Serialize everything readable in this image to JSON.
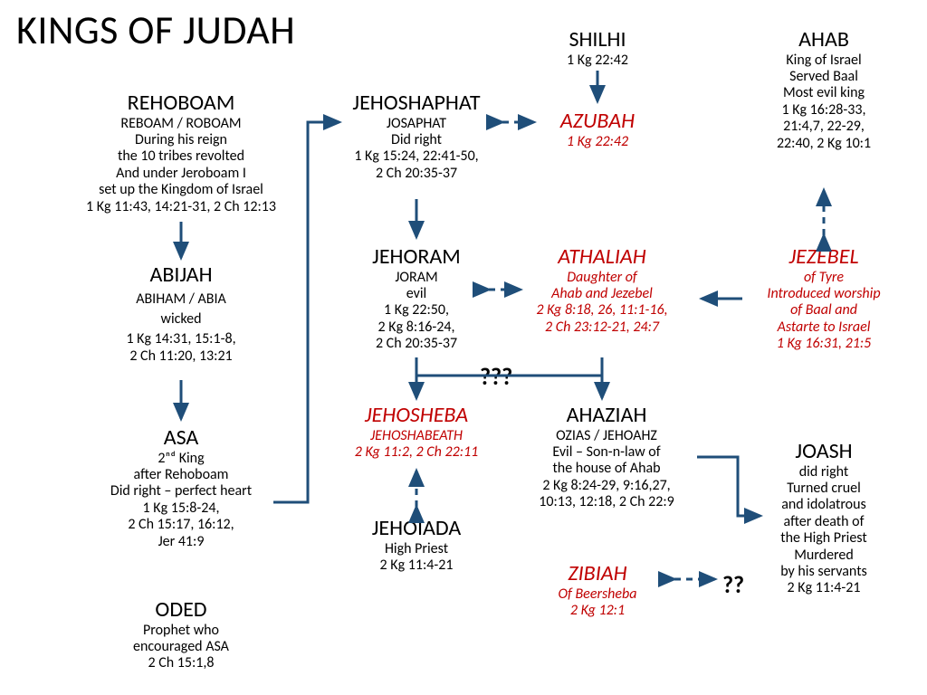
{
  "title": "KINGS OF JUDAH",
  "colors": {
    "text": "#000000",
    "red": "#c00000",
    "arrow": "#1f4e79",
    "bg": "#ffffff"
  },
  "nodes": {
    "rehoboam": {
      "name": "REHOBOAM",
      "alt": "REBOAM / ROBOAM",
      "desc": "During his reign\nthe 10 tribes revolted\nAnd under Jeroboam I\nset up the Kingdom of Israel",
      "ref": "1 Kg 11:43, 14:21-31, 2 Ch 12:13"
    },
    "abijah": {
      "name": "ABIJAH",
      "alt": "ABIHAM / ABIA",
      "desc": "wicked",
      "ref": "1 Kg 14:31, 15:1-8,\n2 Ch 11:20, 13:21"
    },
    "asa": {
      "name": "ASA",
      "alt": "",
      "desc": "2ⁿᵈ King\nafter Rehoboam\nDid right – perfect heart",
      "ref": "1 Kg 15:8-24,\n2 Ch 15:17, 16:12,\nJer 41:9"
    },
    "oded": {
      "name": "ODED",
      "desc": "Prophet who\nencouraged ASA",
      "ref": "2 Ch 15:1,8"
    },
    "jehoshaphat": {
      "name": "JEHOSHAPHAT",
      "alt": "JOSAPHAT",
      "desc": "Did right",
      "ref": "1 Kg 15:24, 22:41-50,\n2 Ch 20:35-37"
    },
    "jehoram": {
      "name": "JEHORAM",
      "alt": "JORAM",
      "desc": "evil",
      "ref": "1 Kg 22:50,\n2 Kg 8:16-24,\n2 Ch 20:35-37"
    },
    "jehosheba": {
      "name": "JEHOSHEBA",
      "alt": "JEHOSHABEATH",
      "ref": "2 Kg 11:2, 2 Ch 22:11"
    },
    "jehoiada": {
      "name": "JEHOIADA",
      "desc": "High Priest",
      "ref": "2 Kg 11:4-21"
    },
    "shilhi": {
      "name": "SHILHI",
      "ref": "1 Kg 22:42"
    },
    "azubah": {
      "name": "AZUBAH",
      "ref": "1 Kg 22:42"
    },
    "athaliah": {
      "name": "ATHALIAH",
      "desc": "Daughter of\nAhab and Jezebel",
      "ref": "2 Kg 8:18, 26, 11:1-16,\n2 Ch 23:12-21, 24:7"
    },
    "ahaziah": {
      "name": "AHAZIAH",
      "alt": "OZIAS / JEHOAHZ",
      "desc": "Evil – Son-n-law of\nthe house of Ahab",
      "ref": "2 Kg 8:24-29, 9:16,27,\n10:13, 12:18, 2 Ch 22:9"
    },
    "zibiah": {
      "name": "ZIBIAH",
      "desc": "Of Beersheba",
      "ref": "2 Kg 12:1"
    },
    "ahab": {
      "name": "AHAB",
      "desc": "King of Israel\nServed Baal\nMost evil king",
      "ref": "1 Kg 16:28-33,\n21:4,7, 22-29,\n22:40, 2 Kg 10:1"
    },
    "jezebel": {
      "name": "JEZEBEL",
      "desc": "of  Tyre\nIntroduced worship\nof Baal and\nAstarte to Israel",
      "ref": "1 Kg 16:31, 21:5"
    },
    "joash": {
      "name": "JOASH",
      "desc": "did right\nTurned cruel\nand idolatrous\nafter death of\nthe High Priest\nMurdered\nby his servants",
      "ref": "2 Kg 11:4-21"
    }
  },
  "qmarks": {
    "q1": "???",
    "q2": "??"
  }
}
